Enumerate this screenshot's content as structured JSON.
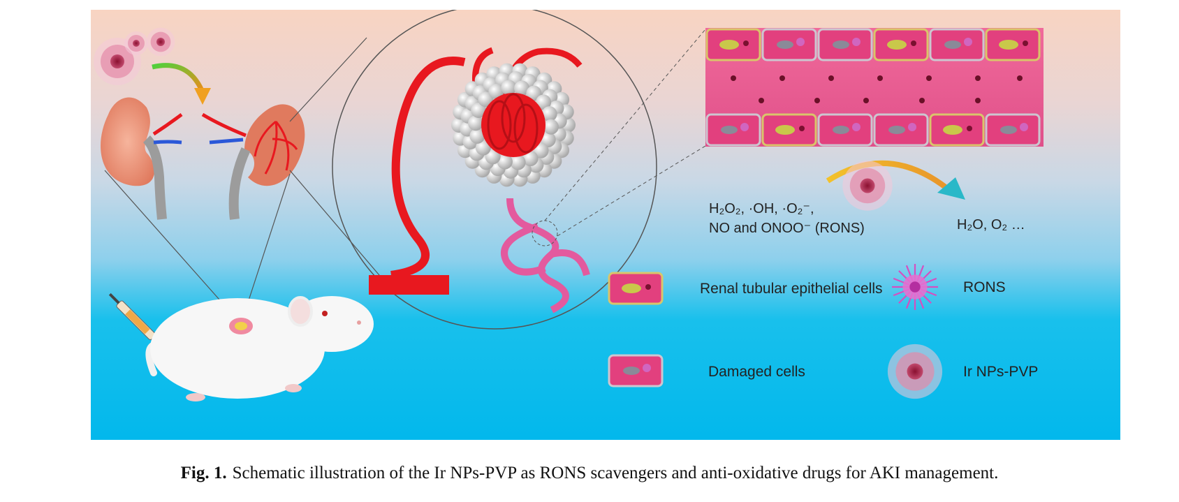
{
  "figure": {
    "reactants_line1": "H₂O₂, ·OH, ·O₂⁻,",
    "reactants_line2": "NO and ONOO⁻ (RONS)",
    "products": "H₂O, O₂ …",
    "legend": {
      "renal_cells": "Renal tubular epithelial cells",
      "damaged_cells": "Damaged cells",
      "rons": "RONS",
      "ir_nps": "Ir NPs-PVP"
    },
    "colors": {
      "vessel_red": "#e8181f",
      "tubule_pink": "#e35a9e",
      "bg_top": "#f8d4c2",
      "bg_bottom": "#02b8ec"
    }
  },
  "caption": {
    "label": "Fig. 1.",
    "text": "Schematic illustration of the Ir NPs-PVP as RONS scavengers and anti-oxidative drugs for AKI management."
  }
}
